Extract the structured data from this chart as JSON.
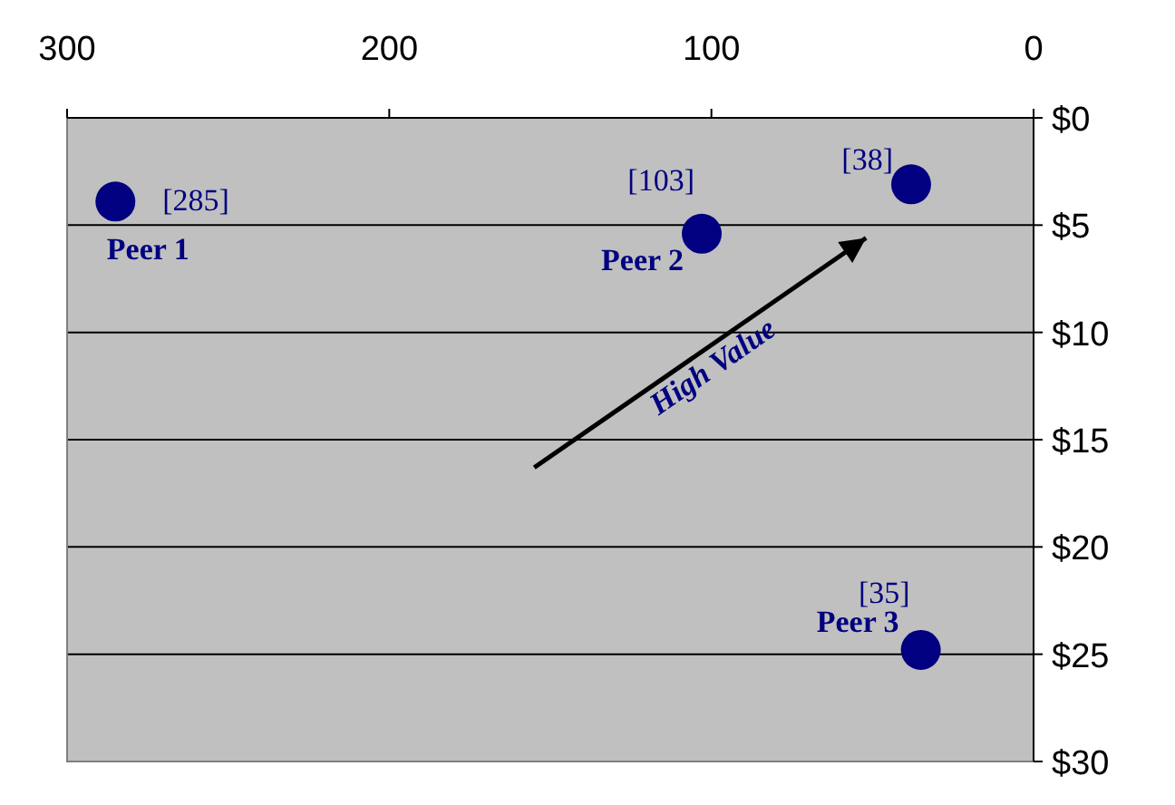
{
  "chart_data": {
    "type": "scatter",
    "xlim": [
      300,
      0
    ],
    "xticks": [
      300,
      200,
      100,
      0
    ],
    "ylim": [
      30,
      0
    ],
    "yticks": [
      {
        "value": 0,
        "label": "$0"
      },
      {
        "value": 5,
        "label": "$5"
      },
      {
        "value": 10,
        "label": "$10"
      },
      {
        "value": 15,
        "label": "$15"
      },
      {
        "value": 20,
        "label": "$20"
      },
      {
        "value": 25,
        "label": "$25"
      },
      {
        "value": 30,
        "label": "$30"
      }
    ],
    "grid": "y",
    "marker": "circle",
    "series": [
      {
        "name": "Peer 1",
        "color": "#000080",
        "x": [
          285
        ],
        "values": [
          3.9
        ]
      },
      {
        "name": "Peer 2",
        "color": "#000080",
        "x": [
          103
        ],
        "values": [
          5.4
        ]
      },
      {
        "color": "#000080",
        "x": [
          38
        ],
        "values": [
          3.1
        ]
      },
      {
        "name": "Peer 3",
        "color": "#000080",
        "x": [
          35
        ],
        "values": [
          24.8
        ]
      }
    ],
    "annotations": [
      "High Value",
      {
        "text": "[285]",
        "x": 285,
        "y": 3.9
      },
      {
        "text": "[103]",
        "x": 103,
        "y": 5.4
      },
      {
        "text": "[38]",
        "x": 38,
        "y": 3.1
      },
      {
        "text": "[35]",
        "x": 35,
        "y": 24.8
      }
    ]
  }
}
